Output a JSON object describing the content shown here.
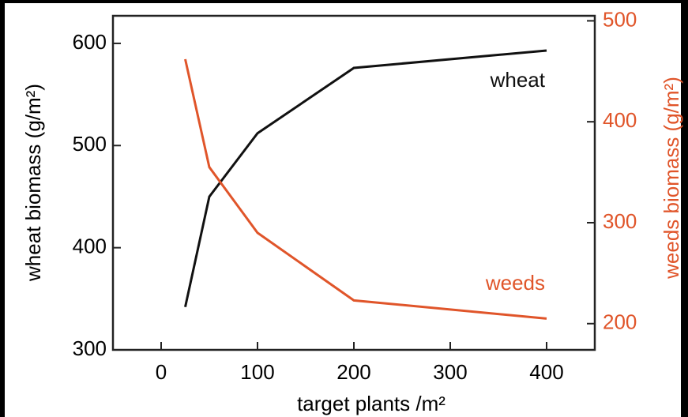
{
  "chart_data": {
    "type": "line",
    "x_label": "target plants /m²",
    "y_label": "wheat biomass (g/m²)",
    "y2_label": "weeds biomass (g/m²)",
    "x": [
      25,
      50,
      100,
      200,
      400
    ],
    "series": [
      {
        "name": "wheat",
        "color": "#111111",
        "values": [
          342,
          450,
          512,
          576,
          593
        ]
      },
      {
        "name": "weeds",
        "color": "#e0552a",
        "axis": "y2",
        "values": [
          462,
          355,
          290,
          223,
          205
        ]
      }
    ],
    "xlim": [
      -50,
      450
    ],
    "xticks": [
      0,
      100,
      200,
      300,
      400
    ],
    "ylim": [
      300,
      627
    ],
    "yticks": [
      300,
      400,
      500,
      600
    ],
    "y2lim": [
      174,
      505
    ],
    "y2ticks": [
      200,
      300,
      400,
      500
    ],
    "y2color": "#e0552a"
  }
}
